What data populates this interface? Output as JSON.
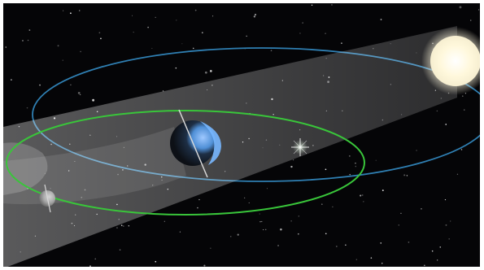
{
  "scene": {
    "background_color": "#050507",
    "frame_color": "#ffffff",
    "earth_orbit_color": "#2f7fb2",
    "moon_orbit_color": "#39c53a",
    "sun_color": "#fff6c9",
    "beam_color": "#d9d9d9",
    "earth_day_color": "#6ea6e8",
    "earth_night_color": "#1d2229",
    "moon_color": "#a9a9a9",
    "lens_flare_color": "#f4fff0"
  }
}
